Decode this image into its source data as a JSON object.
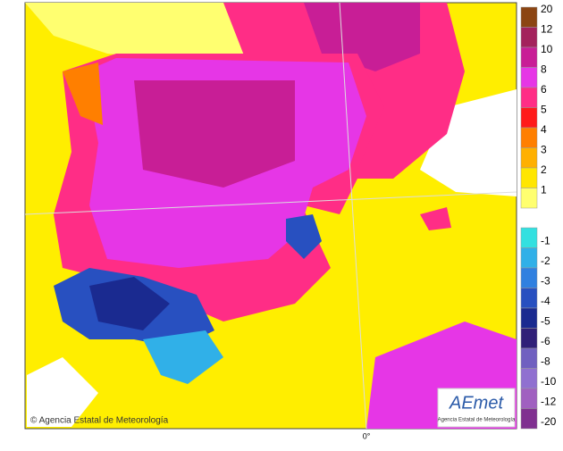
{
  "map": {
    "meridian_label": "0°",
    "copyright": "© Agencia Estatal de Meteorología"
  },
  "logo": {
    "name": "AEmet",
    "subtitle": "Agencia Estatal de Meteorología"
  },
  "legend": {
    "items": [
      {
        "label": 20,
        "color": "#8b4513"
      },
      {
        "label": 12,
        "color": "#a3225c"
      },
      {
        "label": 10,
        "color": "#c81e96"
      },
      {
        "label": 8,
        "color": "#e636e6"
      },
      {
        "label": 6,
        "color": "#ff2d86"
      },
      {
        "label": 5,
        "color": "#ff1a1a"
      },
      {
        "label": 4,
        "color": "#ff7f00"
      },
      {
        "label": 3,
        "color": "#ffb000"
      },
      {
        "label": 2,
        "color": "#ffe600"
      },
      {
        "label": 1,
        "color": "#ffff70"
      },
      {
        "label": -1,
        "color": "#33e0e0"
      },
      {
        "label": -2,
        "color": "#30b0e8"
      },
      {
        "label": -3,
        "color": "#3080e0"
      },
      {
        "label": -4,
        "color": "#2850c0"
      },
      {
        "label": -5,
        "color": "#1a2a90"
      },
      {
        "label": -6,
        "color": "#302078"
      },
      {
        "label": -8,
        "color": "#7060c0"
      },
      {
        "label": -10,
        "color": "#9070d0"
      },
      {
        "label": -12,
        "color": "#a060c0"
      },
      {
        "label": -20,
        "color": "#803090"
      }
    ]
  }
}
